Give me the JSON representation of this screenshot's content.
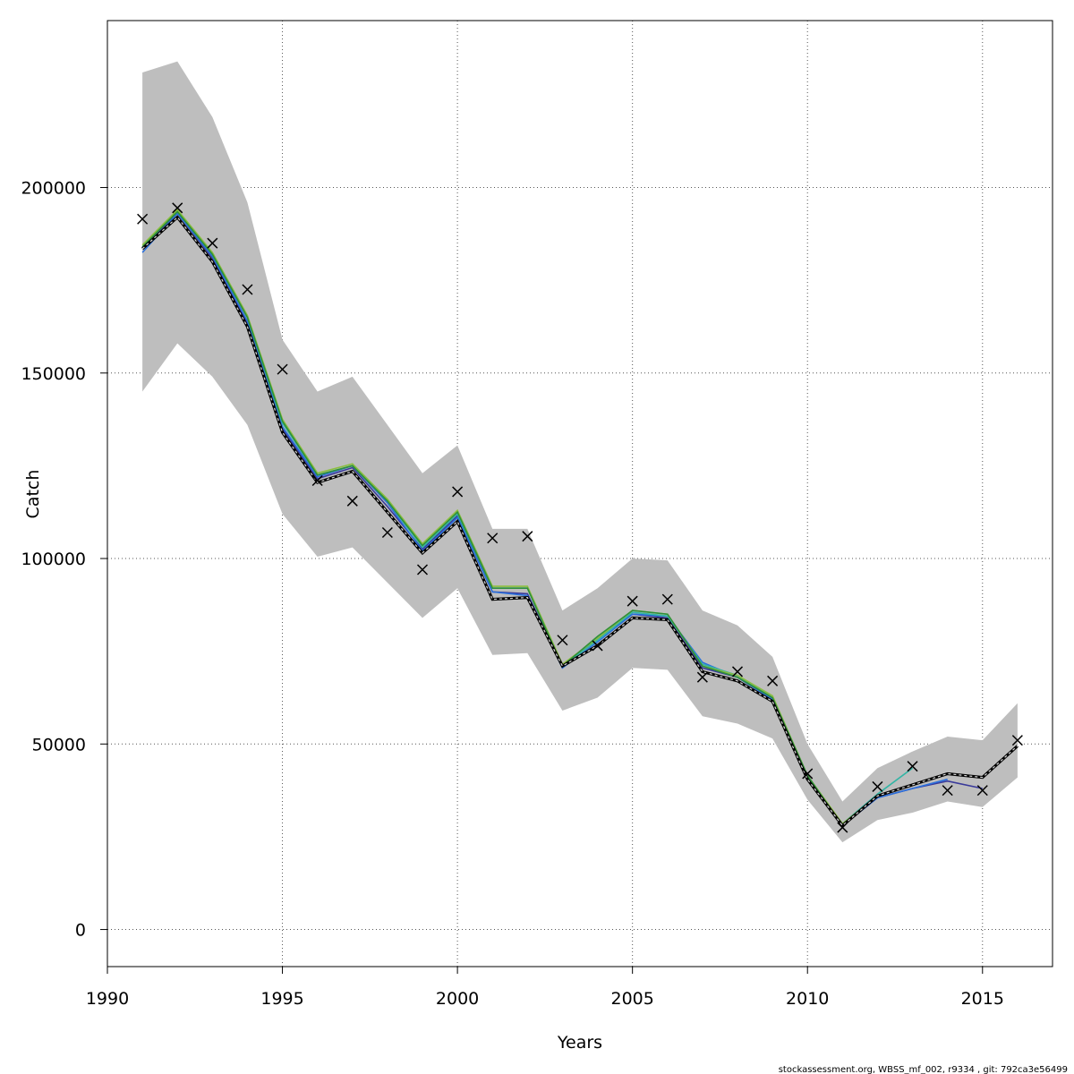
{
  "footer_text": "stockassessment.org, WBSS_mf_002, r9334 , git: 792ca3e56499",
  "chart_data": {
    "type": "line",
    "xlabel": "Years",
    "ylabel": "Catch",
    "xlim": [
      1990,
      2017
    ],
    "ylim": [
      -10000,
      245000
    ],
    "x_ticks": [
      1990,
      1995,
      2000,
      2005,
      2010,
      2015
    ],
    "y_ticks": [
      0,
      50000,
      100000,
      150000,
      200000
    ],
    "grid": true,
    "band_color": "#bebebe",
    "band": {
      "x": [
        1991,
        1992,
        1993,
        1994,
        1995,
        1996,
        1997,
        1998,
        1999,
        2000,
        2001,
        2002,
        2003,
        2004,
        2005,
        2006,
        2007,
        2008,
        2009,
        2010,
        2011,
        2012,
        2013,
        2014,
        2015,
        2016
      ],
      "upper": [
        231000,
        234000,
        219000,
        196000,
        159000,
        145000,
        149000,
        136000,
        123000,
        130500,
        108000,
        108000,
        86000,
        92000,
        100000,
        99500,
        86000,
        82000,
        73500,
        50000,
        34500,
        43500,
        48000,
        52000,
        51000,
        61000
      ],
      "lower": [
        145000,
        158000,
        149000,
        136000,
        112000,
        100500,
        103000,
        93500,
        84000,
        92000,
        74000,
        74500,
        59000,
        62500,
        70500,
        70000,
        57500,
        55500,
        51500,
        35000,
        23500,
        29500,
        31500,
        34500,
        33000,
        41000
      ]
    },
    "observed": {
      "marker": "x",
      "x": [
        1991,
        1992,
        1993,
        1994,
        1995,
        1996,
        1997,
        1998,
        1999,
        2000,
        2001,
        2002,
        2003,
        2004,
        2005,
        2006,
        2007,
        2008,
        2009,
        2010,
        2011,
        2012,
        2013,
        2014,
        2015,
        2016
      ],
      "y": [
        191500,
        194500,
        185000,
        172500,
        151000,
        121000,
        115500,
        107000,
        97000,
        118000,
        105500,
        106000,
        78000,
        76500,
        88500,
        89000,
        68000,
        69500,
        67000,
        42000,
        27500,
        38500,
        44000,
        37500,
        37500,
        51000
      ]
    },
    "series": [
      {
        "role": "retro",
        "color": "#3a3a9a",
        "x": [
          1991,
          1992,
          1993,
          1994,
          1995,
          1996,
          1997,
          1998,
          1999,
          2000,
          2001,
          2002,
          2003,
          2004,
          2005,
          2006,
          2007,
          2008,
          2009,
          2010,
          2011,
          2012,
          2013,
          2014,
          2015
        ],
        "y": [
          183500,
          193000,
          181000,
          163500,
          135000,
          121500,
          124500,
          114000,
          102500,
          111500,
          91000,
          90500,
          71000,
          78500,
          85000,
          84000,
          70500,
          68000,
          62000,
          41000,
          28000,
          35500,
          38000,
          40000,
          38000
        ]
      },
      {
        "role": "retro",
        "color": "#2a6fdc",
        "x": [
          1991,
          1992,
          1993,
          1994,
          1995,
          1996,
          1997,
          1998,
          1999,
          2000,
          2001,
          2002,
          2003,
          2004,
          2005,
          2006,
          2007,
          2008,
          2009,
          2010,
          2011,
          2012,
          2013,
          2014
        ],
        "y": [
          182500,
          193000,
          181500,
          164000,
          135500,
          122000,
          125000,
          115000,
          102000,
          111000,
          91000,
          90000,
          70500,
          77500,
          85000,
          84500,
          72000,
          68000,
          62000,
          41000,
          28000,
          35500,
          38000,
          40500
        ]
      },
      {
        "role": "retro",
        "color": "#33b5a5",
        "x": [
          1991,
          1992,
          1993,
          1994,
          1995,
          1996,
          1997,
          1998,
          1999,
          2000,
          2001,
          2002,
          2003,
          2004,
          2005,
          2006,
          2007,
          2008,
          2009,
          2010,
          2011,
          2012,
          2013
        ],
        "y": [
          184000,
          193500,
          182000,
          165000,
          136500,
          122500,
          125000,
          115500,
          103000,
          112000,
          92000,
          92000,
          71000,
          78000,
          85500,
          84500,
          71500,
          68500,
          62500,
          41000,
          28500,
          36500,
          43500
        ]
      },
      {
        "role": "retro",
        "color": "#8cbf3f",
        "x": [
          1991,
          1992,
          1993,
          1994,
          1995,
          1996,
          1997,
          1998,
          1999,
          2000,
          2001,
          2002,
          2003,
          2004,
          2005,
          2006,
          2007,
          2008,
          2009,
          2010,
          2011,
          2012
        ],
        "y": [
          184500,
          194000,
          182500,
          165500,
          137500,
          123000,
          125500,
          116000,
          104000,
          113000,
          92500,
          92500,
          71500,
          78500,
          86000,
          85000,
          71000,
          68500,
          63000,
          41500,
          28500,
          36000
        ]
      },
      {
        "role": "retro",
        "color": "#2f8f3a",
        "x": [
          1991,
          1992,
          1993,
          1994,
          1995,
          1996,
          1997,
          1998,
          1999,
          2000,
          2001,
          2002,
          2003,
          2004,
          2005,
          2006,
          2007,
          2008,
          2009,
          2010,
          2011
        ],
        "y": [
          184000,
          193500,
          182000,
          165000,
          137000,
          122500,
          125000,
          115500,
          103500,
          112500,
          92000,
          92000,
          71000,
          79000,
          86000,
          85000,
          71000,
          68000,
          62500,
          41500,
          28000
        ]
      },
      {
        "role": "main",
        "color": "#000000",
        "x": [
          1991,
          1992,
          1993,
          1994,
          1995,
          1996,
          1997,
          1998,
          1999,
          2000,
          2001,
          2002,
          2003,
          2004,
          2005,
          2006,
          2007,
          2008,
          2009,
          2010,
          2011,
          2012,
          2013,
          2014,
          2015,
          2016
        ],
        "y": [
          183500,
          192000,
          180000,
          162500,
          134000,
          120500,
          123500,
          112500,
          101500,
          110000,
          89000,
          89500,
          71000,
          76500,
          84000,
          83500,
          69500,
          67000,
          61500,
          40500,
          28000,
          36000,
          39000,
          42000,
          41000,
          49500
        ]
      }
    ]
  }
}
